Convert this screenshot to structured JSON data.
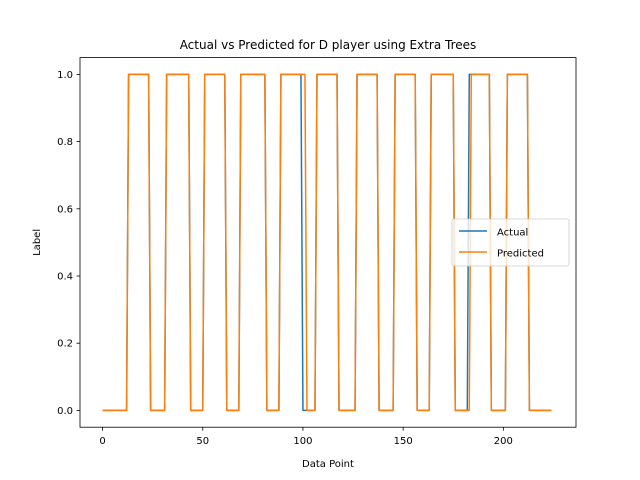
{
  "chart_data": {
    "type": "line",
    "title": "Actual vs Predicted for D player using Extra Trees",
    "xlabel": "Data Point",
    "ylabel": "Label",
    "xlim": [
      -11.25,
      236.25
    ],
    "ylim": [
      -0.05,
      1.05
    ],
    "xticks": [
      0,
      50,
      100,
      150,
      200
    ],
    "yticks": [
      0.0,
      0.2,
      0.4,
      0.6,
      0.8,
      1.0
    ],
    "xtick_labels": [
      "0",
      "50",
      "100",
      "150",
      "200"
    ],
    "ytick_labels": [
      "0.0",
      "0.2",
      "0.4",
      "0.6",
      "0.8",
      "1.0"
    ],
    "grid": false,
    "legend_position": "center-right",
    "series": [
      {
        "name": "Actual",
        "color": "#1f77b4",
        "x": [
          0,
          12,
          13,
          23,
          24,
          31,
          32,
          43,
          44,
          50,
          51,
          61,
          62,
          68,
          69,
          81,
          82,
          88,
          89,
          99,
          100,
          106,
          107,
          117,
          118,
          126,
          127,
          137,
          138,
          145,
          146,
          156,
          157,
          163,
          164,
          175,
          176,
          182,
          183,
          193,
          194,
          201,
          202,
          212,
          213,
          224
        ],
        "y": [
          0,
          0,
          1,
          1,
          0,
          0,
          1,
          1,
          0,
          0,
          1,
          1,
          0,
          0,
          1,
          1,
          0,
          0,
          1,
          1,
          0,
          0,
          1,
          1,
          0,
          0,
          1,
          1,
          0,
          0,
          1,
          1,
          0,
          0,
          1,
          1,
          0,
          0,
          1,
          1,
          0,
          0,
          1,
          1,
          0,
          0
        ]
      },
      {
        "name": "Predicted",
        "color": "#ff7f0e",
        "x": [
          0,
          12,
          13,
          23,
          24,
          31,
          32,
          43,
          44,
          50,
          51,
          61,
          62,
          68,
          69,
          81,
          82,
          88,
          89,
          101,
          102,
          106,
          107,
          117,
          118,
          126,
          127,
          137,
          138,
          145,
          146,
          156,
          157,
          163,
          164,
          175,
          176,
          183,
          184,
          193,
          194,
          201,
          202,
          212,
          213,
          224
        ],
        "y": [
          0,
          0,
          1,
          1,
          0,
          0,
          1,
          1,
          0,
          0,
          1,
          1,
          0,
          0,
          1,
          1,
          0,
          0,
          1,
          1,
          0,
          0,
          1,
          1,
          0,
          0,
          1,
          1,
          0,
          0,
          1,
          1,
          0,
          0,
          1,
          1,
          0,
          0,
          1,
          1,
          0,
          0,
          1,
          1,
          0,
          0
        ]
      }
    ]
  }
}
